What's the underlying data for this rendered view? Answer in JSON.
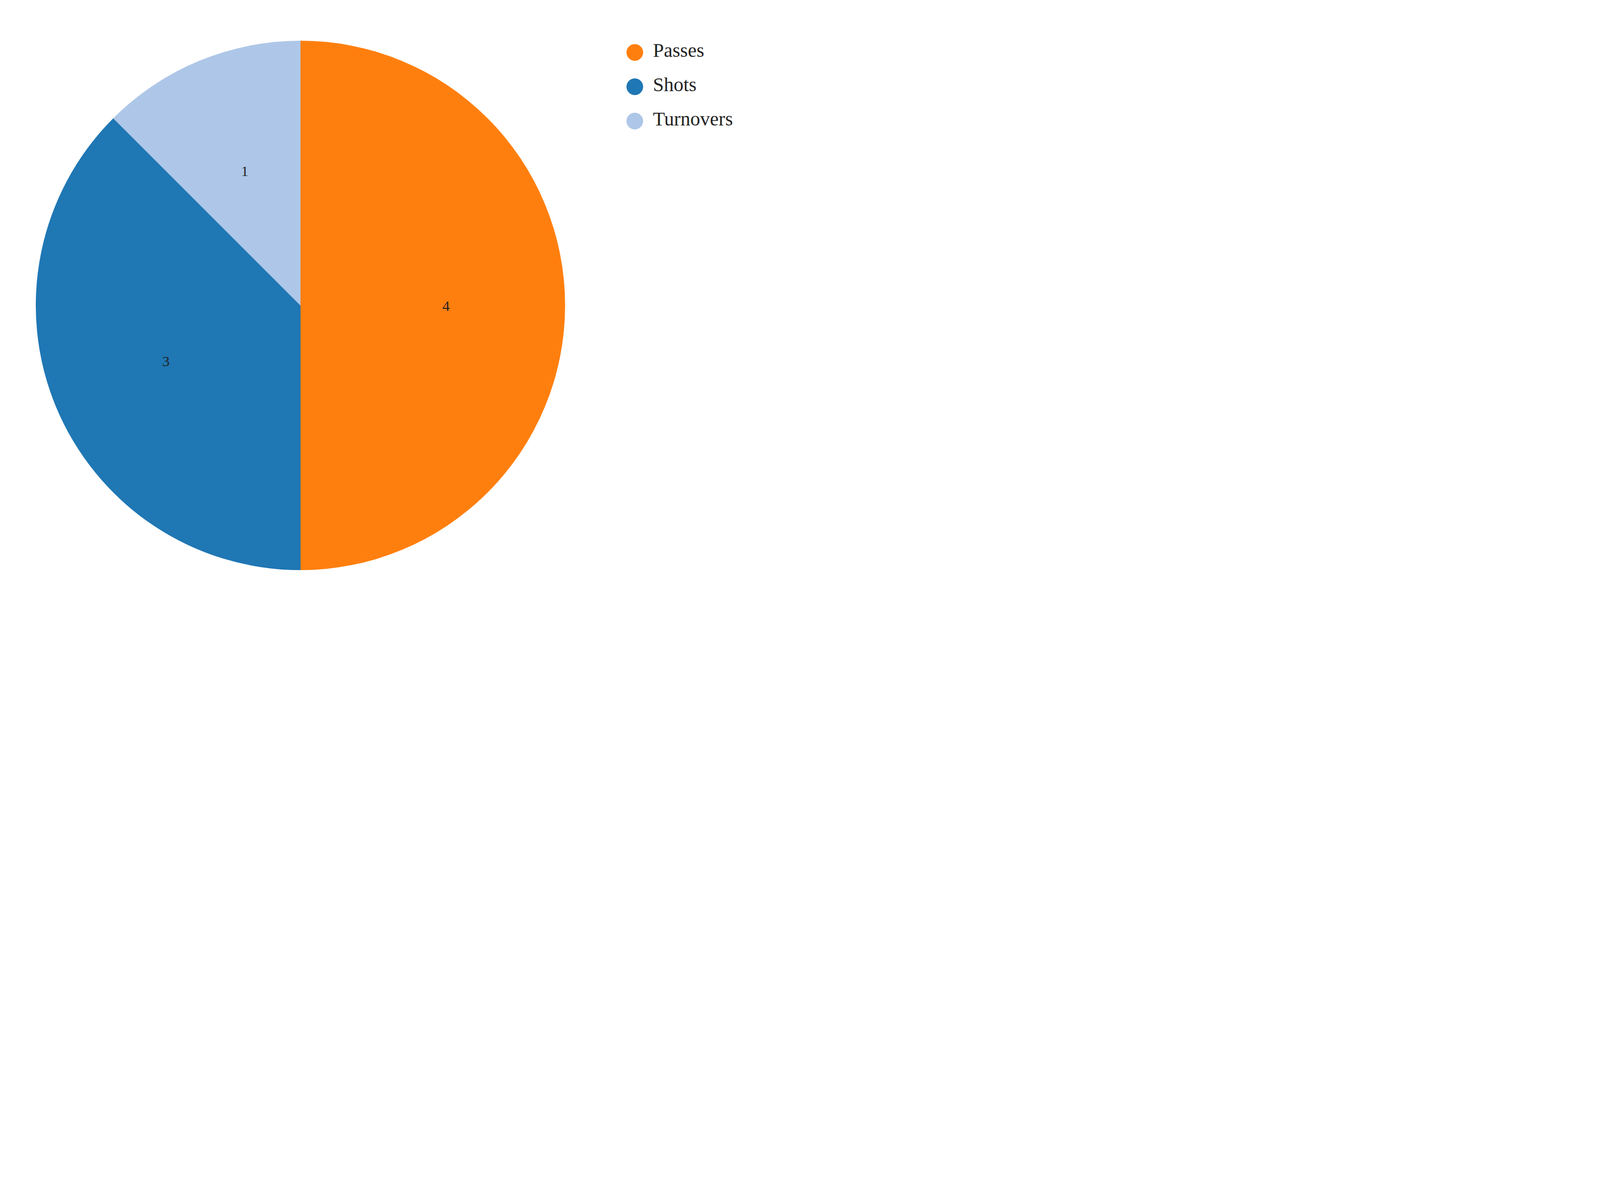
{
  "chart_data": {
    "type": "pie",
    "categories": [
      "Shots",
      "Passes",
      "Turnovers"
    ],
    "values": [
      3,
      4,
      1
    ],
    "colors": [
      "#1f77b4",
      "#ff7f0e",
      "#aec7e8"
    ],
    "data_labels": true,
    "legend": "right"
  }
}
